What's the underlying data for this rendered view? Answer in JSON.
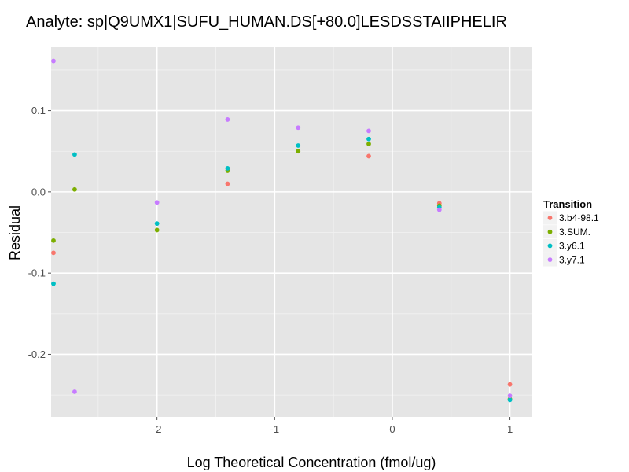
{
  "chart_data": {
    "type": "scatter",
    "title": "Analyte: sp|Q9UMX1|SUFU_HUMAN.DS[+80.0]LESDSSTAIIPHELIR",
    "xlabel": "Log Theoretical Concentration (fmol/ug)",
    "ylabel": "Residual",
    "xlim": [
      -2.9,
      1.19
    ],
    "ylim": [
      -0.277,
      0.178
    ],
    "x_ticks": [
      -2,
      -1,
      0,
      1
    ],
    "x_tick_labels": [
      "-2",
      "-1",
      "0",
      "1"
    ],
    "y_ticks": [
      0.1,
      0.0,
      -0.1,
      -0.2
    ],
    "y_tick_labels": [
      "0.1",
      "0.0",
      "-0.1",
      "-0.2"
    ],
    "grid": true,
    "legend": {
      "title": "Transition",
      "position": "right"
    },
    "series": [
      {
        "name": "3.b4-98.1",
        "color": "#F8766D",
        "points": [
          [
            -2.88,
            -0.075
          ],
          [
            -1.4,
            0.01
          ],
          [
            -0.2,
            0.044
          ],
          [
            0.4,
            -0.014
          ],
          [
            1.0,
            -0.237
          ]
        ]
      },
      {
        "name": "3.SUM.",
        "color": "#7CAE00",
        "points": [
          [
            -2.88,
            -0.06
          ],
          [
            -2.7,
            0.003
          ],
          [
            -2.0,
            -0.047
          ],
          [
            -1.4,
            0.026
          ],
          [
            -0.8,
            0.05
          ],
          [
            -0.2,
            0.059
          ],
          [
            0.4,
            -0.017
          ],
          [
            1.0,
            -0.255
          ]
        ]
      },
      {
        "name": "3.y6.1",
        "color": "#00BFC4",
        "points": [
          [
            -2.88,
            -0.113
          ],
          [
            -2.7,
            0.046
          ],
          [
            -2.0,
            -0.039
          ],
          [
            -1.4,
            0.029
          ],
          [
            -0.8,
            0.057
          ],
          [
            -0.2,
            0.065
          ],
          [
            0.4,
            -0.019
          ],
          [
            1.0,
            -0.256
          ]
        ]
      },
      {
        "name": "3.y7.1",
        "color": "#C77CFF",
        "points": [
          [
            -2.88,
            0.161
          ],
          [
            -2.7,
            -0.246
          ],
          [
            -2.0,
            -0.013
          ],
          [
            -1.4,
            0.089
          ],
          [
            -0.8,
            0.079
          ],
          [
            -0.2,
            0.075
          ],
          [
            0.4,
            -0.022
          ],
          [
            1.0,
            -0.251
          ]
        ]
      }
    ]
  }
}
